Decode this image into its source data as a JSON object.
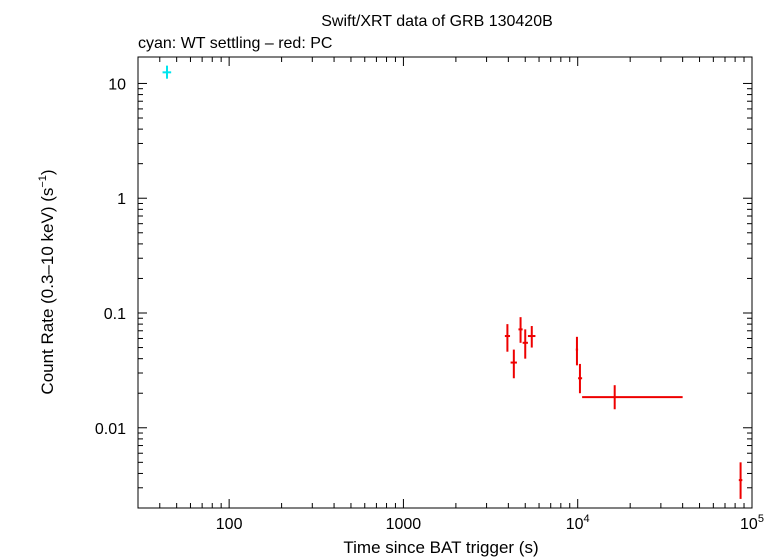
{
  "chart_data": {
    "type": "scatter",
    "title": "Swift/XRT data of GRB 130420B",
    "subtitle": "cyan: WT settling – red: PC",
    "xlabel": "Time since BAT trigger (s)",
    "ylabel": "Count Rate (0.3–10 keV) (s",
    "ylabel_sup": "−1",
    "ylabel_close": ")",
    "x_scale": "log",
    "y_scale": "log",
    "xlim": [
      30,
      100000
    ],
    "ylim": [
      0.002,
      17
    ],
    "grid": false,
    "legend": "subtitle text",
    "x_ticks": [
      {
        "value": 100,
        "label": "100"
      },
      {
        "value": 1000,
        "label": "1000"
      },
      {
        "value": 10000,
        "base": "10",
        "exp": "4"
      },
      {
        "value": 100000,
        "base": "10",
        "exp": "5"
      }
    ],
    "y_ticks": [
      {
        "value": 10,
        "label": "10"
      },
      {
        "value": 1,
        "label": "1"
      },
      {
        "value": 0.1,
        "label": "0.1"
      },
      {
        "value": 0.01,
        "label": "0.01"
      }
    ],
    "series": [
      {
        "color": "#00e5ee",
        "points": [
          {
            "x": 44,
            "xlo": 41.5,
            "xhi": 46.5,
            "y": 12.5,
            "ylo": 11.0,
            "yhi": 14.3
          }
        ]
      },
      {
        "color": "#ee0000",
        "points": [
          {
            "x": 3950,
            "xlo": 3820,
            "xhi": 4090,
            "y": 0.063,
            "ylo": 0.046,
            "yhi": 0.08
          },
          {
            "x": 4300,
            "xlo": 4120,
            "xhi": 4480,
            "y": 0.037,
            "ylo": 0.027,
            "yhi": 0.048
          },
          {
            "x": 4700,
            "xlo": 4570,
            "xhi": 4830,
            "y": 0.072,
            "ylo": 0.055,
            "yhi": 0.092
          },
          {
            "x": 5000,
            "xlo": 4830,
            "xhi": 5180,
            "y": 0.055,
            "ylo": 0.04,
            "yhi": 0.072
          },
          {
            "x": 5450,
            "xlo": 5180,
            "xhi": 5720,
            "y": 0.063,
            "ylo": 0.05,
            "yhi": 0.077
          },
          {
            "x": 9900,
            "xlo": 9750,
            "xhi": 10050,
            "y": 0.048,
            "ylo": 0.035,
            "yhi": 0.062
          },
          {
            "x": 10300,
            "xlo": 10050,
            "xhi": 10600,
            "y": 0.027,
            "ylo": 0.02,
            "yhi": 0.036
          },
          {
            "x": 16300,
            "xlo": 10600,
            "xhi": 40000,
            "y": 0.0185,
            "ylo": 0.0145,
            "yhi": 0.0235
          },
          {
            "x": 86000,
            "xlo": 84000,
            "xhi": 88000,
            "y": 0.0035,
            "ylo": 0.0024,
            "yhi": 0.005
          }
        ]
      }
    ]
  }
}
